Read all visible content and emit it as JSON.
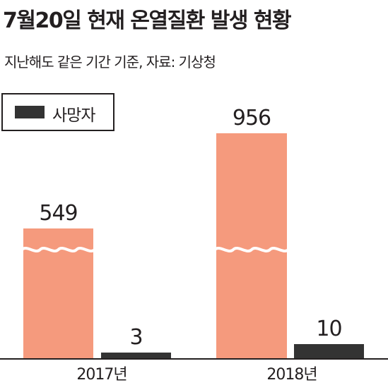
{
  "title": "7월20일 현재 온열질환 발생 현황",
  "subtitle": "지난해도 같은 기간 기준, 자료: 기상청",
  "legend": {
    "label": "사망자"
  },
  "colors": {
    "cases": "#f59a7d",
    "deaths": "#333333",
    "text": "#231f20",
    "background": "#ffffff"
  },
  "chart_data": {
    "type": "bar",
    "title": "7월20일 현재 온열질환 발생 현황",
    "subtitle": "지난해도 같은 기간 기준, 자료: 기상청",
    "categories": [
      "2017년",
      "2018년"
    ],
    "series": [
      {
        "values": [
          549,
          956
        ],
        "color": "#f59a7d",
        "axis_break": true
      },
      {
        "name": "사망자",
        "values": [
          3,
          10
        ],
        "color": "#333333"
      }
    ],
    "xlabel": "",
    "ylabel": "",
    "grid": false,
    "legend_position": "top-left",
    "data_labels": true
  }
}
